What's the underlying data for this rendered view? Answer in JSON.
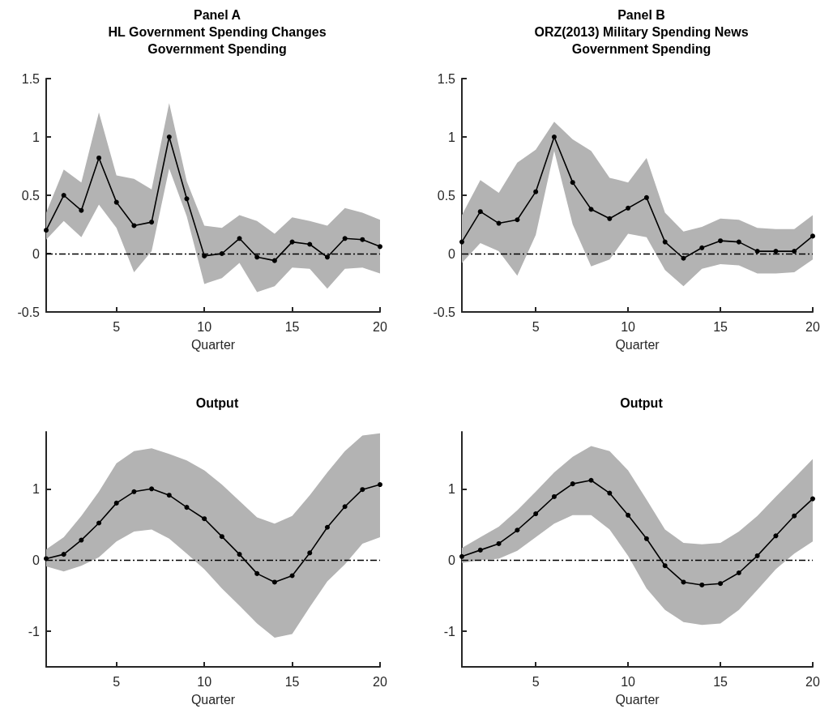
{
  "chart_data": [
    {
      "type": "line",
      "title": "Panel A\nHL Government Spending Changes\nGovernment Spending",
      "xlabel": "Quarter",
      "x": [
        1,
        2,
        3,
        4,
        5,
        6,
        7,
        8,
        9,
        10,
        11,
        12,
        13,
        14,
        15,
        16,
        17,
        18,
        19,
        20
      ],
      "xlim": [
        1,
        20
      ],
      "xticks": [
        5,
        10,
        15,
        20
      ],
      "ylim": [
        -0.5,
        1.5
      ],
      "yticks": [
        -0.5,
        0,
        0.5,
        1,
        1.5
      ],
      "marker": "circle",
      "grid": false,
      "ref_lines": [
        {
          "axis": "y",
          "value": 0,
          "line_style": "dashed",
          "color": "#000000"
        }
      ],
      "series": [
        {
          "color": "#000000",
          "values": [
            0.2,
            0.5,
            0.37,
            0.82,
            0.44,
            0.24,
            0.27,
            1.0,
            0.47,
            -0.02,
            0.0,
            0.13,
            -0.03,
            -0.06,
            0.1,
            0.08,
            -0.03,
            0.13,
            0.12,
            0.06
          ],
          "lower": [
            0.12,
            0.28,
            0.14,
            0.42,
            0.22,
            -0.16,
            0.02,
            0.73,
            0.32,
            -0.26,
            -0.21,
            -0.08,
            -0.33,
            -0.28,
            -0.12,
            -0.13,
            -0.3,
            -0.13,
            -0.12,
            -0.17
          ],
          "upper": [
            0.35,
            0.72,
            0.61,
            1.21,
            0.67,
            0.64,
            0.55,
            1.29,
            0.62,
            0.24,
            0.22,
            0.33,
            0.28,
            0.17,
            0.31,
            0.28,
            0.24,
            0.39,
            0.35,
            0.29
          ]
        }
      ]
    },
    {
      "type": "line",
      "title": "Panel B\nORZ(2013) Military Spending News\nGovernment Spending",
      "xlabel": "Quarter",
      "x": [
        1,
        2,
        3,
        4,
        5,
        6,
        7,
        8,
        9,
        10,
        11,
        12,
        13,
        14,
        15,
        16,
        17,
        18,
        19,
        20
      ],
      "xlim": [
        1,
        20
      ],
      "xticks": [
        5,
        10,
        15,
        20
      ],
      "ylim": [
        -0.5,
        1.5
      ],
      "yticks": [
        -0.5,
        0,
        0.5,
        1,
        1.5
      ],
      "marker": "circle",
      "grid": false,
      "ref_lines": [
        {
          "axis": "y",
          "value": 0,
          "line_style": "dashed",
          "color": "#000000"
        }
      ],
      "series": [
        {
          "color": "#000000",
          "values": [
            0.1,
            0.36,
            0.26,
            0.29,
            0.53,
            1.0,
            0.61,
            0.38,
            0.3,
            0.39,
            0.48,
            0.1,
            -0.04,
            0.05,
            0.11,
            0.1,
            0.02,
            0.02,
            0.02,
            0.15
          ],
          "lower": [
            -0.08,
            0.09,
            0.02,
            -0.19,
            0.16,
            0.88,
            0.25,
            -0.11,
            -0.05,
            0.17,
            0.14,
            -0.14,
            -0.28,
            -0.13,
            -0.09,
            -0.1,
            -0.17,
            -0.17,
            -0.16,
            -0.05
          ],
          "upper": [
            0.33,
            0.63,
            0.52,
            0.78,
            0.89,
            1.13,
            0.98,
            0.88,
            0.65,
            0.61,
            0.82,
            0.35,
            0.19,
            0.23,
            0.3,
            0.29,
            0.22,
            0.21,
            0.21,
            0.33
          ]
        }
      ]
    },
    {
      "type": "line",
      "title": "Output",
      "xlabel": "Quarter",
      "x": [
        1,
        2,
        3,
        4,
        5,
        6,
        7,
        8,
        9,
        10,
        11,
        12,
        13,
        14,
        15,
        16,
        17,
        18,
        19,
        20
      ],
      "xlim": [
        1,
        20
      ],
      "xticks": [
        5,
        10,
        15,
        20
      ],
      "ylim": [
        -1.5,
        1.8
      ],
      "yticks": [
        -1,
        0,
        1
      ],
      "marker": "circle",
      "grid": false,
      "ref_lines": [
        {
          "axis": "y",
          "value": 0,
          "line_style": "dashed",
          "color": "#000000"
        }
      ],
      "series": [
        {
          "color": "#000000",
          "values": [
            0.02,
            0.08,
            0.28,
            0.52,
            0.8,
            0.96,
            1.0,
            0.91,
            0.74,
            0.58,
            0.33,
            0.08,
            -0.19,
            -0.31,
            -0.22,
            0.1,
            0.46,
            0.75,
            0.99,
            1.06
          ],
          "lower": [
            -0.09,
            -0.16,
            -0.08,
            0.04,
            0.26,
            0.4,
            0.43,
            0.3,
            0.09,
            -0.13,
            -0.4,
            -0.64,
            -0.89,
            -1.09,
            -1.04,
            -0.66,
            -0.3,
            -0.06,
            0.23,
            0.32
          ],
          "upper": [
            0.15,
            0.32,
            0.62,
            0.96,
            1.36,
            1.53,
            1.57,
            1.49,
            1.4,
            1.26,
            1.06,
            0.83,
            0.6,
            0.51,
            0.62,
            0.91,
            1.23,
            1.53,
            1.75,
            1.78
          ]
        }
      ]
    },
    {
      "type": "line",
      "title": "Output",
      "xlabel": "Quarter",
      "x": [
        1,
        2,
        3,
        4,
        5,
        6,
        7,
        8,
        9,
        10,
        11,
        12,
        13,
        14,
        15,
        16,
        17,
        18,
        19,
        20
      ],
      "xlim": [
        1,
        20
      ],
      "xticks": [
        5,
        10,
        15,
        20
      ],
      "ylim": [
        -1.5,
        1.8
      ],
      "yticks": [
        -1,
        0,
        1
      ],
      "marker": "circle",
      "grid": false,
      "ref_lines": [
        {
          "axis": "y",
          "value": 0,
          "line_style": "dashed",
          "color": "#000000"
        }
      ],
      "series": [
        {
          "color": "#000000",
          "values": [
            0.05,
            0.14,
            0.23,
            0.42,
            0.65,
            0.89,
            1.07,
            1.12,
            0.94,
            0.63,
            0.3,
            -0.08,
            -0.31,
            -0.35,
            -0.33,
            -0.18,
            0.06,
            0.34,
            0.62,
            0.86
          ],
          "lower": [
            -0.04,
            0.0,
            0.02,
            0.13,
            0.32,
            0.51,
            0.63,
            0.63,
            0.43,
            0.06,
            -0.4,
            -0.7,
            -0.87,
            -0.91,
            -0.89,
            -0.7,
            -0.42,
            -0.13,
            0.09,
            0.26
          ],
          "upper": [
            0.17,
            0.32,
            0.47,
            0.7,
            0.96,
            1.23,
            1.45,
            1.6,
            1.53,
            1.26,
            0.85,
            0.43,
            0.24,
            0.22,
            0.24,
            0.4,
            0.62,
            0.89,
            1.15,
            1.42
          ]
        }
      ]
    }
  ]
}
